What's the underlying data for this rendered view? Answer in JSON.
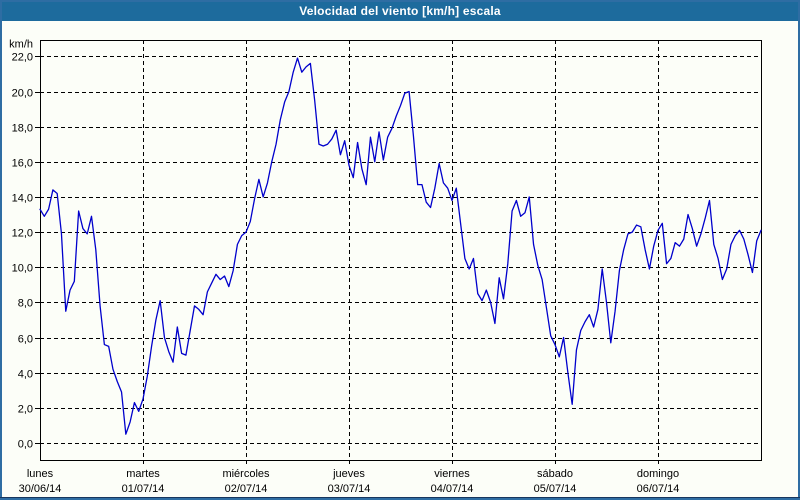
{
  "title_bar": {
    "title": "Velocidad del viento [km/h] escala",
    "bg_color": "#1D6B9D",
    "text_color": "#FFFFFF"
  },
  "window": {
    "border_color": "#2E6DA3",
    "accent_line_color": "#17365D",
    "background_color": "#FCFEF8"
  },
  "chart_data": {
    "type": "line",
    "title": "Velocidad del viento [km/h] escala",
    "ylabel": "km/h",
    "xlabel": "",
    "ylim": [
      0,
      22
    ],
    "ytick_step": 2,
    "ytick_labels": [
      "0,0",
      "2,0",
      "4,0",
      "6,0",
      "8,0",
      "10,0",
      "12,0",
      "14,0",
      "16,0",
      "18,0",
      "20,0",
      "22,0"
    ],
    "grid": "dashed",
    "legend_position": "none",
    "line_color": "#0000CC",
    "grid_color": "#000000",
    "axis_color": "#000000",
    "days": [
      {
        "name": "lunes",
        "date": "30/06/14"
      },
      {
        "name": "martes",
        "date": "01/07/14"
      },
      {
        "name": "miércoles",
        "date": "02/07/14"
      },
      {
        "name": "jueves",
        "date": "03/07/14"
      },
      {
        "name": "viernes",
        "date": "04/07/14"
      },
      {
        "name": "sábado",
        "date": "05/07/14"
      },
      {
        "name": "domingo",
        "date": "06/07/14"
      }
    ],
    "hours_per_day": 24,
    "series": [
      {
        "name": "Velocidad del viento [km/h]",
        "values": [
          13.3,
          12.9,
          13.3,
          14.4,
          14.2,
          11.9,
          7.5,
          8.7,
          9.2,
          13.2,
          12.2,
          11.9,
          12.9,
          11.0,
          7.8,
          5.6,
          5.5,
          4.2,
          3.5,
          2.9,
          0.5,
          1.2,
          2.3,
          1.8,
          2.5,
          3.8,
          5.5,
          7.0,
          8.1,
          6.0,
          5.2,
          4.6,
          6.6,
          5.1,
          5.0,
          6.4,
          7.8,
          7.6,
          7.3,
          8.6,
          9.1,
          9.6,
          9.3,
          9.5,
          8.9,
          9.8,
          11.3,
          11.8,
          12.0,
          12.6,
          13.9,
          15.0,
          14.0,
          14.8,
          16.0,
          17.0,
          18.4,
          19.4,
          20.0,
          21.1,
          21.9,
          21.1,
          21.4,
          21.6,
          19.5,
          17.0,
          16.9,
          17.0,
          17.3,
          17.8,
          16.4,
          17.2,
          15.8,
          15.1,
          17.1,
          15.6,
          14.7,
          17.4,
          16.0,
          17.7,
          16.1,
          17.4,
          17.9,
          18.6,
          19.2,
          19.9,
          20.0,
          17.5,
          14.7,
          14.7,
          13.7,
          13.4,
          14.5,
          15.9,
          14.8,
          14.5,
          13.8,
          14.5,
          12.5,
          10.5,
          9.9,
          10.5,
          8.5,
          8.1,
          8.7,
          8.0,
          6.8,
          9.4,
          8.2,
          10.2,
          13.2,
          13.8,
          12.9,
          13.1,
          14.0,
          11.3,
          10.1,
          9.3,
          7.7,
          6.1,
          5.6,
          4.9,
          6.0,
          4.0,
          2.2,
          5.3,
          6.4,
          6.9,
          7.3,
          6.6,
          7.6,
          9.9,
          8.0,
          5.7,
          7.5,
          9.8,
          11.0,
          11.9,
          12.0,
          12.4,
          12.3,
          11.0,
          9.9,
          11.2,
          12.1,
          12.5,
          10.2,
          10.5,
          11.4,
          11.2,
          11.6,
          13.0,
          12.2,
          11.2,
          11.9,
          12.8,
          13.8,
          11.3,
          10.5,
          9.3,
          9.9,
          11.3,
          11.8,
          12.1,
          11.6,
          10.7,
          9.7,
          11.5,
          12.1
        ]
      }
    ]
  }
}
